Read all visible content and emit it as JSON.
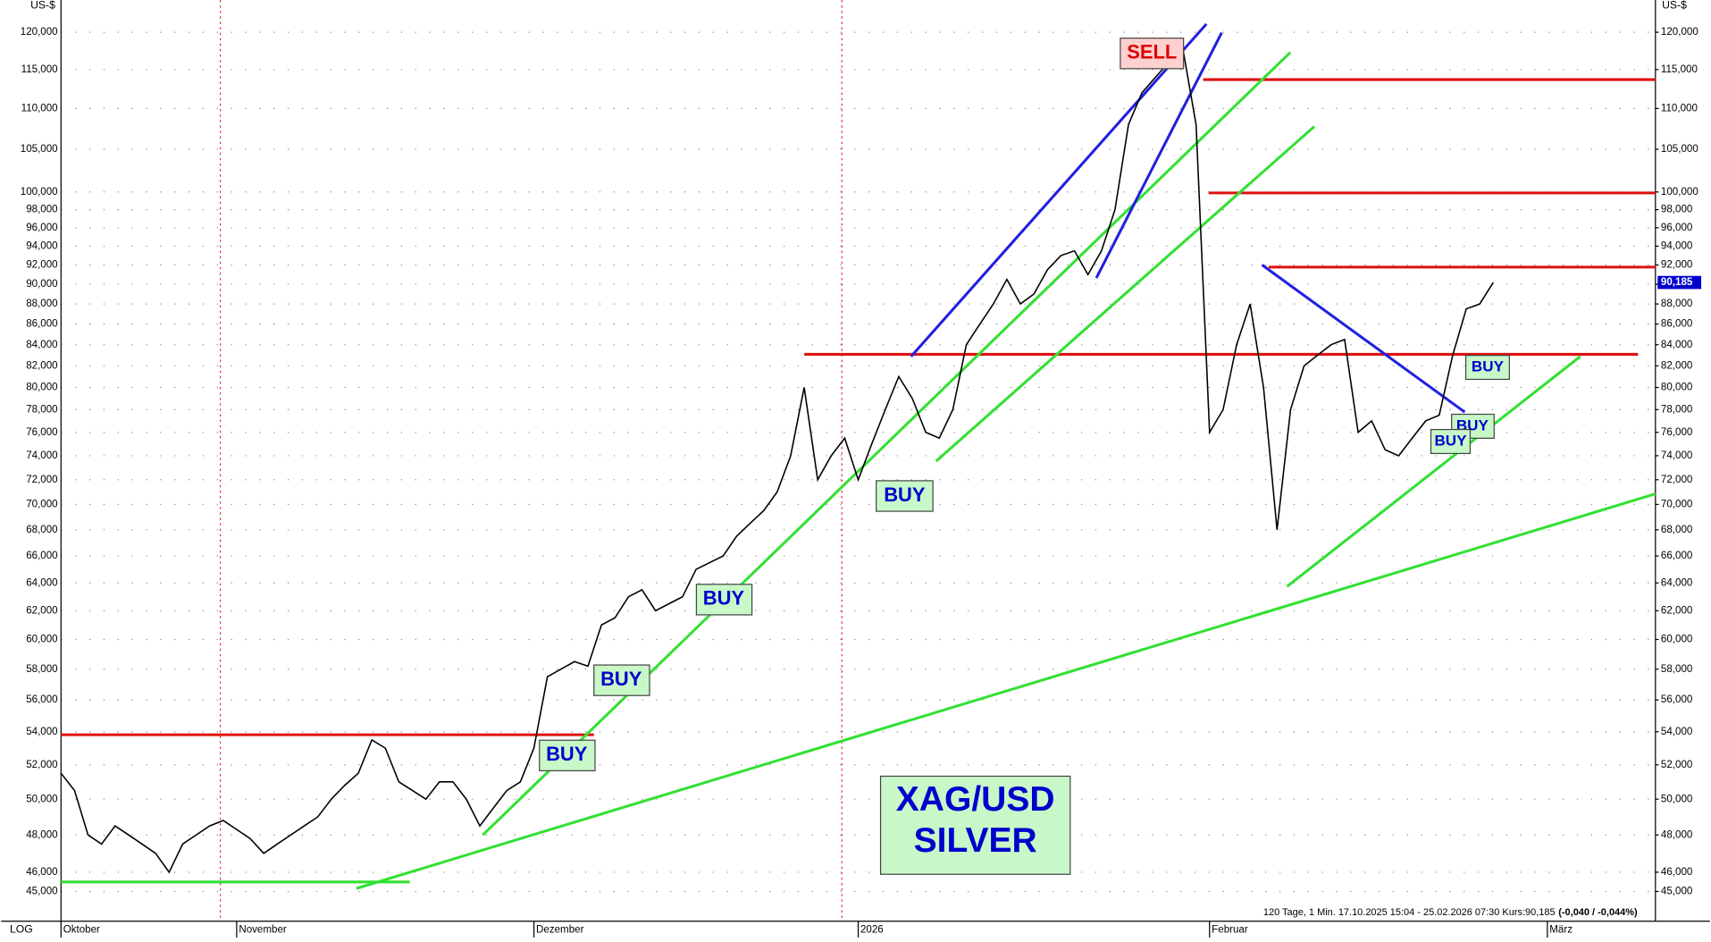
{
  "chart_data": {
    "type": "line",
    "scale": "log",
    "y_unit": "US-$",
    "scale_label": "LOG",
    "categories": [
      "Oktober",
      null,
      null,
      null,
      null,
      null,
      null,
      null,
      null,
      null,
      null,
      null,
      null,
      "November",
      null,
      null,
      null,
      null,
      null,
      null,
      null,
      null,
      null,
      null,
      null,
      null,
      null,
      null,
      null,
      null,
      null,
      null,
      null,
      null,
      null,
      "Dezember",
      null,
      null,
      null,
      null,
      null,
      null,
      null,
      null,
      null,
      null,
      null,
      null,
      null,
      null,
      null,
      null,
      null,
      null,
      null,
      null,
      null,
      null,
      null,
      "2026",
      null,
      null,
      null,
      null,
      null,
      null,
      null,
      null,
      null,
      null,
      null,
      null,
      null,
      null,
      null,
      null,
      null,
      null,
      null,
      null,
      null,
      null,
      null,
      null,
      null,
      "Februar",
      null,
      null,
      null,
      null,
      null,
      null,
      null,
      null,
      null,
      null,
      null,
      null,
      null,
      null,
      null,
      null,
      null,
      null,
      null,
      null,
      null,
      null,
      null,
      null,
      "März",
      null,
      null,
      null,
      null,
      null,
      null,
      null
    ],
    "series": [
      {
        "name": "XAG/USD",
        "color": "#000000",
        "values": [
          51500,
          50500,
          48000,
          47500,
          48500,
          48000,
          47500,
          47000,
          46000,
          47500,
          48000,
          48500,
          48800,
          48300,
          47800,
          47000,
          47500,
          48000,
          48500,
          49000,
          50000,
          50800,
          51500,
          53500,
          53000,
          51000,
          50500,
          50000,
          51000,
          51000,
          50000,
          48500,
          49500,
          50500,
          51000,
          53000,
          57500,
          58000,
          58500,
          58200,
          61000,
          61500,
          63000,
          63500,
          62000,
          62500,
          63000,
          65000,
          65500,
          66000,
          67500,
          68500,
          69500,
          71000,
          74000,
          80000,
          72000,
          74000,
          75500,
          72000,
          75000,
          78000,
          81000,
          79000,
          76000,
          75500,
          78000,
          84000,
          86000,
          88000,
          90500,
          88000,
          89000,
          91500,
          93000,
          93500,
          91000,
          93500,
          98000,
          108000,
          112000,
          114000,
          116000,
          118000,
          108000,
          76000,
          78000,
          84000,
          88000,
          80000,
          68000,
          78000,
          82000,
          83000,
          84000,
          84500,
          76000,
          77000,
          74500,
          74000,
          75500,
          77000,
          77500,
          83000,
          87500,
          88000,
          90185,
          null,
          null,
          null,
          null,
          null,
          null,
          null,
          null,
          null,
          null,
          null
        ],
        "last_value_label": "90,185"
      }
    ],
    "ylim": [
      43500,
      124500
    ],
    "yticks": [
      {
        "value": 45000,
        "label": "45,000"
      },
      {
        "value": 46000,
        "label": "46,000"
      },
      {
        "value": 48000,
        "label": "48,000"
      },
      {
        "value": 50000,
        "label": "50,000"
      },
      {
        "value": 52000,
        "label": "52,000"
      },
      {
        "value": 54000,
        "label": "54,000"
      },
      {
        "value": 56000,
        "label": "56,000"
      },
      {
        "value": 58000,
        "label": "58,000"
      },
      {
        "value": 60000,
        "label": "60,000"
      },
      {
        "value": 62000,
        "label": "62,000"
      },
      {
        "value": 64000,
        "label": "64,000"
      },
      {
        "value": 66000,
        "label": "66,000"
      },
      {
        "value": 68000,
        "label": "68,000"
      },
      {
        "value": 70000,
        "label": "70,000"
      },
      {
        "value": 72000,
        "label": "72,000"
      },
      {
        "value": 74000,
        "label": "74,000"
      },
      {
        "value": 76000,
        "label": "76,000"
      },
      {
        "value": 78000,
        "label": "78,000"
      },
      {
        "value": 80000,
        "label": "80,000"
      },
      {
        "value": 82000,
        "label": "82,000"
      },
      {
        "value": 84000,
        "label": "84,000"
      },
      {
        "value": 86000,
        "label": "86,000"
      },
      {
        "value": 88000,
        "label": "88,000"
      },
      {
        "value": 90000,
        "label": "90,000"
      },
      {
        "value": 92000,
        "label": "92,000"
      },
      {
        "value": 94000,
        "label": "94,000"
      },
      {
        "value": 96000,
        "label": "96,000"
      },
      {
        "value": 98000,
        "label": "98,000"
      },
      {
        "value": 100000,
        "label": "100,000"
      },
      {
        "value": 105000,
        "label": "105,000"
      },
      {
        "value": 110000,
        "label": "110,000"
      },
      {
        "value": 115000,
        "label": "115,000"
      },
      {
        "value": 120000,
        "label": "120,000"
      }
    ],
    "grid": true,
    "title": [
      "XAG/USD",
      "SILVER"
    ],
    "annotations": [
      "SELL",
      "BUY",
      "BUY",
      "BUY",
      "BUY",
      "BUY",
      "BUY",
      "BUY"
    ],
    "info": "120 Tage, 1 Min. 17.10.2025 15:04 - 25.02.2026 07:30 Kurs:90,185",
    "change": "(-0,040 / -0,044%)"
  }
}
